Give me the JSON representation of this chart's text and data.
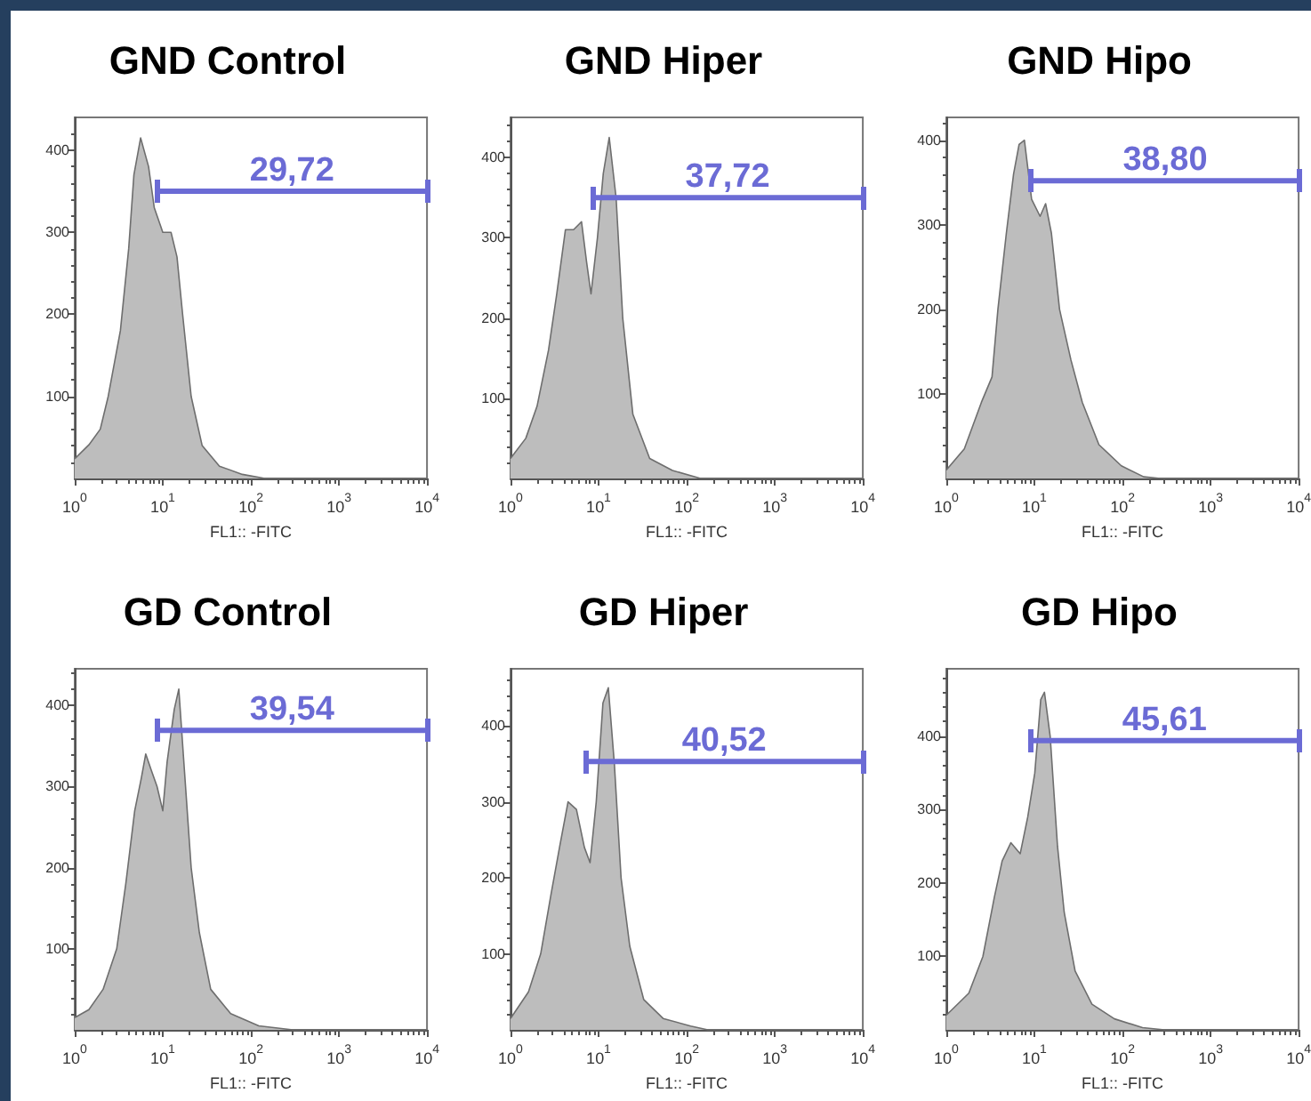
{
  "chart_data": [
    {
      "type": "area",
      "title": "GND Control",
      "xlabel": "FL1:: -FITC",
      "log": "x",
      "grid": false,
      "marker": "none",
      "xlim": [
        1,
        10000
      ],
      "ylim": [
        0,
        440
      ],
      "yticks": [
        100,
        200,
        300,
        400
      ],
      "xticks": [
        {
          "value": 1,
          "label": "10$^{0}$"
        },
        {
          "value": 10,
          "label": "10$^{1}$"
        },
        {
          "value": 100,
          "label": "10$^{2}$"
        },
        {
          "value": 1000,
          "label": "10$^{3}$"
        },
        {
          "value": 10000,
          "label": "10$^{4}$"
        }
      ],
      "x": [
        1,
        1.45,
        1.95,
        2.4,
        3.3,
        4.1,
        4.7,
        5.6,
        6.9,
        8.0,
        10,
        12.4,
        14.5,
        16.8,
        21,
        28,
        44,
        80,
        145,
        10000
      ],
      "series": [
        {
          "color": "#bdbdbd",
          "values": [
            24,
            41,
            60,
            100,
            180,
            280,
            370,
            415,
            380,
            330,
            300,
            300,
            270,
            200,
            100,
            40,
            15,
            5,
            0,
            0
          ]
        },
        {
          "type": "line",
          "name": "29,72",
          "color": "#6b6bd5",
          "x": [
            8.6,
            10000
          ],
          "values": [
            350,
            350
          ]
        }
      ]
    },
    {
      "type": "area",
      "title": "GND Hiper",
      "xlabel": "FL1:: -FITC",
      "log": "x",
      "grid": false,
      "marker": "none",
      "xlim": [
        1,
        10000
      ],
      "ylim": [
        0,
        450
      ],
      "yticks": [
        100,
        200,
        300,
        400
      ],
      "xticks": [
        {
          "value": 1,
          "label": "10$^{0}$"
        },
        {
          "value": 10,
          "label": "10$^{1}$"
        },
        {
          "value": 100,
          "label": "10$^{2}$"
        },
        {
          "value": 1000,
          "label": "10$^{3}$"
        },
        {
          "value": 10000,
          "label": "10$^{4}$"
        }
      ],
      "x": [
        1,
        1.49,
        2.0,
        2.7,
        3.35,
        4.2,
        5.2,
        6.4,
        7.3,
        8.2,
        9.7,
        11.3,
        13.2,
        15.8,
        18.8,
        24.5,
        38,
        69,
        144,
        10000
      ],
      "series": [
        {
          "color": "#bdbdbd",
          "values": [
            25,
            50,
            90,
            160,
            230,
            310,
            310,
            320,
            270,
            230,
            300,
            380,
            425,
            350,
            200,
            80,
            25,
            10,
            0,
            0
          ]
        },
        {
          "type": "line",
          "name": "37,72",
          "color": "#6b6bd5",
          "x": [
            8.5,
            10000
          ],
          "values": [
            350,
            350
          ]
        }
      ]
    },
    {
      "type": "area",
      "title": "GND Hipo",
      "xlabel": "FL1:: -FITC",
      "log": "x",
      "grid": false,
      "marker": "none",
      "xlim": [
        1,
        10000
      ],
      "ylim": [
        0,
        427
      ],
      "yticks": [
        100,
        200,
        300,
        400
      ],
      "xticks": [
        {
          "value": 1,
          "label": "10$^{0}$"
        },
        {
          "value": 10,
          "label": "10$^{1}$"
        },
        {
          "value": 100,
          "label": "10$^{2}$"
        },
        {
          "value": 1000,
          "label": "10$^{3}$"
        },
        {
          "value": 10000,
          "label": "10$^{4}$"
        }
      ],
      "x": [
        1,
        1.6,
        2.5,
        3.3,
        3.85,
        4.8,
        5.8,
        6.7,
        7.7,
        9.3,
        11.6,
        13.4,
        15.6,
        19.3,
        26,
        35,
        54,
        97,
        174,
        270,
        10000
      ],
      "series": [
        {
          "color": "#bdbdbd",
          "values": [
            10,
            35,
            90,
            120,
            200,
            290,
            360,
            395,
            400,
            330,
            310,
            325,
            290,
            200,
            140,
            90,
            40,
            15,
            2,
            0,
            0
          ]
        },
        {
          "type": "line",
          "name": "38,80",
          "color": "#6b6bd5",
          "x": [
            9.3,
            10000
          ],
          "values": [
            352,
            352
          ]
        }
      ]
    },
    {
      "type": "area",
      "title": "GD Control",
      "xlabel": "FL1:: -FITC",
      "log": "x",
      "grid": false,
      "marker": "none",
      "xlim": [
        1,
        10000
      ],
      "ylim": [
        0,
        445
      ],
      "yticks": [
        100,
        200,
        300,
        400
      ],
      "xticks": [
        {
          "value": 1,
          "label": "10$^{0}$"
        },
        {
          "value": 10,
          "label": "10$^{1}$"
        },
        {
          "value": 100,
          "label": "10$^{2}$"
        },
        {
          "value": 1000,
          "label": "10$^{3}$"
        },
        {
          "value": 10000,
          "label": "10$^{4}$"
        }
      ],
      "x": [
        1,
        1.45,
        2.1,
        3.0,
        3.8,
        4.8,
        5.7,
        6.4,
        7.4,
        8.6,
        10,
        11.2,
        13.5,
        15.2,
        17.6,
        21,
        26,
        35,
        59,
        123,
        300,
        10000
      ],
      "series": [
        {
          "color": "#bdbdbd",
          "values": [
            15,
            25,
            50,
            100,
            180,
            270,
            310,
            340,
            320,
            300,
            270,
            330,
            395,
            420,
            320,
            200,
            120,
            50,
            20,
            5,
            0,
            0
          ]
        },
        {
          "type": "line",
          "name": "39,54",
          "color": "#6b6bd5",
          "x": [
            8.6,
            10000
          ],
          "values": [
            369,
            369
          ]
        }
      ]
    },
    {
      "type": "area",
      "title": "GD Hiper",
      "xlabel": "FL1:: -FITC",
      "log": "x",
      "grid": false,
      "marker": "none",
      "xlim": [
        1,
        10000
      ],
      "ylim": [
        0,
        475
      ],
      "yticks": [
        100,
        200,
        300,
        400
      ],
      "xticks": [
        {
          "value": 1,
          "label": "10$^{0}$"
        },
        {
          "value": 10,
          "label": "10$^{1}$"
        },
        {
          "value": 100,
          "label": "10$^{2}$"
        },
        {
          "value": 1000,
          "label": "10$^{3}$"
        },
        {
          "value": 10000,
          "label": "10$^{4}$"
        }
      ],
      "x": [
        1,
        1.6,
        2.2,
        2.9,
        3.6,
        4.5,
        5.6,
        6.9,
        8.0,
        9.4,
        11.2,
        12.9,
        15.1,
        18.0,
        22.6,
        32.5,
        54,
        111,
        174,
        10000
      ],
      "series": [
        {
          "color": "#bdbdbd",
          "values": [
            15,
            50,
            100,
            180,
            240,
            300,
            290,
            240,
            220,
            300,
            430,
            450,
            350,
            200,
            110,
            40,
            15,
            5,
            0,
            0
          ]
        },
        {
          "type": "line",
          "name": "40,52",
          "color": "#6b6bd5",
          "x": [
            7.1,
            10000
          ],
          "values": [
            353,
            353
          ]
        }
      ]
    },
    {
      "type": "area",
      "title": "GD Hipo",
      "xlabel": "FL1:: -FITC",
      "log": "x",
      "grid": false,
      "marker": "none",
      "xlim": [
        1,
        10000
      ],
      "ylim": [
        0,
        492
      ],
      "yticks": [
        100,
        200,
        300,
        400
      ],
      "xticks": [
        {
          "value": 1,
          "label": "10$^{0}$"
        },
        {
          "value": 10,
          "label": "10$^{1}$"
        },
        {
          "value": 100,
          "label": "10$^{2}$"
        },
        {
          "value": 1000,
          "label": "10$^{3}$"
        },
        {
          "value": 10000,
          "label": "10$^{4}$"
        }
      ],
      "x": [
        1,
        1.8,
        2.6,
        3.5,
        4.3,
        5.4,
        6.9,
        8.4,
        10.1,
        11.8,
        13.0,
        15.1,
        18.3,
        21.8,
        29,
        45,
        81,
        169,
        300,
        10000
      ],
      "series": [
        {
          "color": "#bdbdbd",
          "values": [
            20,
            50,
            100,
            180,
            230,
            255,
            240,
            290,
            350,
            450,
            460,
            400,
            250,
            160,
            80,
            35,
            15,
            3,
            0,
            0
          ]
        },
        {
          "type": "line",
          "name": "45,61",
          "color": "#6b6bd5",
          "x": [
            9.0,
            10000
          ],
          "values": [
            394,
            394
          ]
        }
      ]
    }
  ]
}
